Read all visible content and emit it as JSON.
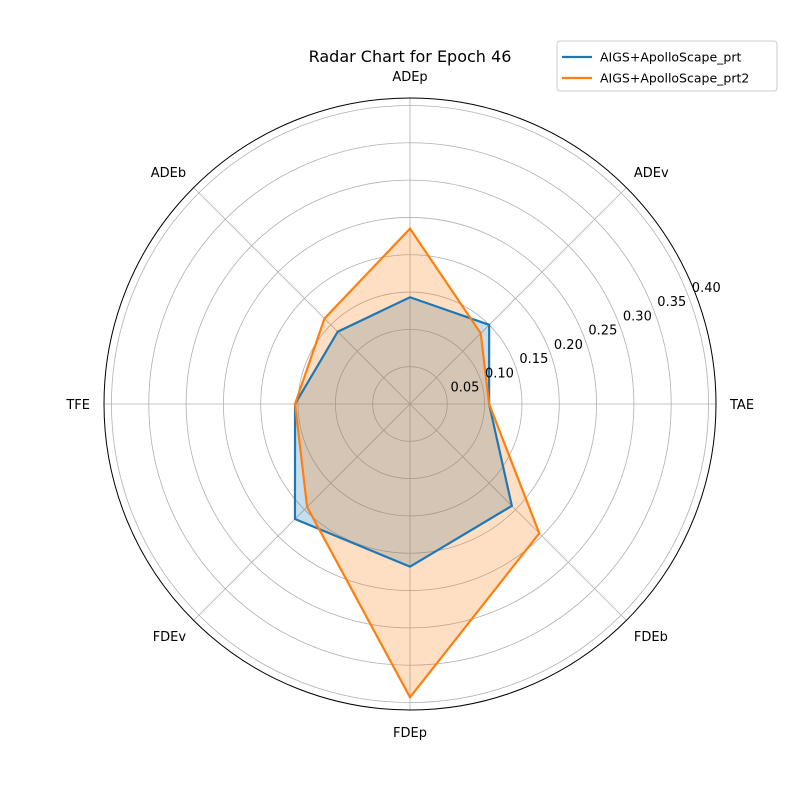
{
  "chart_data": {
    "type": "radar",
    "title": "Radar Chart for Epoch 46",
    "axes": [
      "ADEp",
      "ADEv",
      "TAE",
      "FDEb",
      "FDEp",
      "FDEv",
      "TFE",
      "ADEb"
    ],
    "radial_ticks": [
      "0.05",
      "0.10",
      "0.15",
      "0.20",
      "0.25",
      "0.30",
      "0.35",
      "0.40"
    ],
    "radial_range": [
      0,
      0.41
    ],
    "grid": true,
    "legend_position": "top-right",
    "series": [
      {
        "name": "AIGS+ApolloScape_prt",
        "color": "#1f77b4",
        "values": [
          0.143,
          0.15,
          0.106,
          0.193,
          0.218,
          0.218,
          0.154,
          0.137
        ]
      },
      {
        "name": "AIGS+ApolloScape_prt2",
        "color": "#ff7f0e",
        "values": [
          0.235,
          0.134,
          0.106,
          0.245,
          0.393,
          0.195,
          0.154,
          0.162
        ]
      }
    ]
  }
}
